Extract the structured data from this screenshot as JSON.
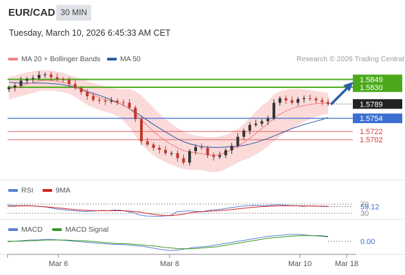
{
  "header": {
    "symbol": "EUR/CAD",
    "timeframe": "30 MIN",
    "timestamp": "Tuesday, March 10, 2026 6:45:33 AM CET"
  },
  "legend": {
    "ma20_bb": {
      "label": "MA 20 + Bollinger Bands",
      "color": "#f08080"
    },
    "ma50": {
      "label": "MA 50",
      "color": "#2c5aa0"
    },
    "rsi": {
      "label": "RSI",
      "color": "#5b7fd6"
    },
    "rsi_ma": {
      "label": "9MA",
      "color": "#d42020"
    },
    "macd": {
      "label": "MACD",
      "color": "#5b7fd6"
    },
    "macd_signal": {
      "label": "MACD Signal",
      "color": "#3a9a20"
    }
  },
  "credit": "Research © 2026 Trading Central",
  "colors": {
    "up_candle": "#333333",
    "down_candle": "#c0392b",
    "band_fill": "#fbdada",
    "resistance": "#4caa1a",
    "support_blue": "#3d6fd0",
    "support_red": "#e06060",
    "current": "#222222",
    "arrow": "#2a5fa8"
  },
  "chart_data": {
    "type": "candlestick",
    "x_ticks": [
      "Mar 6",
      "Mar 8",
      "Mar 10",
      "Mar 18"
    ],
    "current_price": "1.5789",
    "levels": [
      {
        "value": "1.5849",
        "kind": "resistance"
      },
      {
        "value": "1.5830",
        "kind": "resistance"
      },
      {
        "value": "1.5754",
        "kind": "pivot"
      },
      {
        "value": "1.5722",
        "kind": "support"
      },
      {
        "value": "1.5702",
        "kind": "support"
      }
    ],
    "close": [
      1.5829,
      1.5834,
      1.5846,
      1.585,
      1.5852,
      1.586,
      1.5861,
      1.5854,
      1.585,
      1.5848,
      1.5838,
      1.5828,
      1.5818,
      1.5808,
      1.5799,
      1.5797,
      1.5795,
      1.5797,
      1.5793,
      1.5792,
      1.578,
      1.5752,
      1.5698,
      1.569,
      1.5682,
      1.5677,
      1.5669,
      1.5669,
      1.5657,
      1.5646,
      1.5674,
      1.5684,
      1.5682,
      1.5664,
      1.566,
      1.5664,
      1.5676,
      1.5687,
      1.5709,
      1.5724,
      1.5738,
      1.5741,
      1.5747,
      1.5754,
      1.5792,
      1.5803,
      1.5798,
      1.5792,
      1.5801,
      1.5803,
      1.5802,
      1.5798,
      1.5794,
      1.5789
    ],
    "ma20": [
      1.5826,
      1.5829,
      1.5833,
      1.5838,
      1.5841,
      1.5845,
      1.5847,
      1.5846,
      1.5844,
      1.5842,
      1.5838,
      1.5831,
      1.5824,
      1.5817,
      1.5811,
      1.5805,
      1.58,
      1.5796,
      1.5792,
      1.5786,
      1.5778,
      1.5765,
      1.575,
      1.5736,
      1.5722,
      1.571,
      1.5699,
      1.569,
      1.5682,
      1.5675,
      1.5672,
      1.567,
      1.5668,
      1.5665,
      1.5664,
      1.5666,
      1.5671,
      1.5678,
      1.5686,
      1.5695,
      1.5706,
      1.5717,
      1.5729,
      1.5741,
      1.5754,
      1.5764,
      1.5772,
      1.5778,
      1.5782,
      1.5785,
      1.5788,
      1.579,
      1.5791,
      1.5791
    ],
    "ma50": [
      1.5842,
      1.5841,
      1.584,
      1.584,
      1.584,
      1.584,
      1.584,
      1.5839,
      1.5838,
      1.5836,
      1.5833,
      1.5829,
      1.5825,
      1.582,
      1.5815,
      1.581,
      1.5805,
      1.5799,
      1.5793,
      1.5786,
      1.5778,
      1.5769,
      1.5759,
      1.5749,
      1.5739,
      1.573,
      1.5721,
      1.5712,
      1.5704,
      1.5697,
      1.5692,
      1.5688,
      1.5685,
      1.5684,
      1.5683,
      1.5683,
      1.5684,
      1.5685,
      1.5686,
      1.5688,
      1.5691,
      1.5695,
      1.57,
      1.5705,
      1.5711,
      1.5717,
      1.5723,
      1.5729,
      1.5734,
      1.5739,
      1.5743,
      1.5747,
      1.5751,
      1.5756
    ],
    "bb_upper": [
      1.5856,
      1.5858,
      1.5863,
      1.5866,
      1.5869,
      1.5871,
      1.5872,
      1.587,
      1.5868,
      1.5865,
      1.586,
      1.5855,
      1.585,
      1.5845,
      1.584,
      1.5836,
      1.5832,
      1.5828,
      1.5826,
      1.5825,
      1.5825,
      1.582,
      1.581,
      1.5795,
      1.578,
      1.5765,
      1.5752,
      1.574,
      1.573,
      1.5722,
      1.5716,
      1.5712,
      1.571,
      1.5708,
      1.5708,
      1.571,
      1.5714,
      1.572,
      1.5728,
      1.574,
      1.5755,
      1.577,
      1.5785,
      1.5795,
      1.5812,
      1.582,
      1.5824,
      1.5826,
      1.5826,
      1.5825,
      1.5823,
      1.582,
      1.5818,
      1.5816
    ],
    "bb_lower": [
      1.58,
      1.5804,
      1.5808,
      1.5812,
      1.5816,
      1.582,
      1.5822,
      1.5822,
      1.582,
      1.5818,
      1.5814,
      1.5806,
      1.5796,
      1.5787,
      1.578,
      1.5775,
      1.577,
      1.5766,
      1.576,
      1.5748,
      1.5732,
      1.5712,
      1.569,
      1.5676,
      1.5664,
      1.5655,
      1.5647,
      1.5641,
      1.5635,
      1.563,
      1.5628,
      1.5628,
      1.5628,
      1.5624,
      1.5622,
      1.5624,
      1.563,
      1.5638,
      1.5646,
      1.5652,
      1.5658,
      1.5666,
      1.5674,
      1.5686,
      1.5698,
      1.571,
      1.572,
      1.573,
      1.5738,
      1.5745,
      1.5752,
      1.5758,
      1.5762,
      1.5765
    ],
    "rsi": {
      "current": "59.12",
      "levels": [
        "70",
        "30"
      ],
      "values": [
        66,
        64,
        63,
        64,
        62,
        60,
        58,
        52,
        48,
        45,
        42,
        40,
        38,
        39,
        40,
        42,
        41,
        44,
        43,
        38,
        32,
        22,
        18,
        17,
        16,
        18,
        21,
        37,
        39,
        40,
        38,
        37,
        42,
        45,
        48,
        52,
        56,
        60,
        63,
        65,
        64,
        63,
        66,
        68,
        66,
        64,
        63,
        60,
        62,
        61,
        60,
        59
      ],
      "ma9": [
        60,
        61,
        62,
        63,
        62,
        60,
        58,
        56,
        53,
        51,
        48,
        45,
        43,
        42,
        41,
        41,
        41,
        41,
        41,
        40,
        38,
        35,
        30,
        26,
        22,
        20,
        19,
        22,
        26,
        31,
        35,
        37,
        39,
        40,
        42,
        44,
        47,
        50,
        53,
        56,
        58,
        60,
        61,
        62,
        63,
        63,
        63,
        62,
        62,
        61,
        61,
        60
      ]
    },
    "macd": {
      "current": "0.00",
      "values": [
        -2,
        -1,
        0,
        1,
        1,
        2,
        2,
        1,
        0,
        -1,
        -2,
        -3,
        -4,
        -5,
        -6,
        -6,
        -7,
        -8,
        -9,
        -11,
        -13,
        -15,
        -16,
        -15,
        -13,
        -11,
        -10,
        -9,
        -7,
        -5,
        -3,
        -1,
        1,
        3,
        5,
        7,
        8,
        9,
        10,
        10,
        9,
        8,
        7,
        6
      ],
      "signal": [
        -1,
        -1,
        -1,
        0,
        0,
        1,
        1,
        1,
        1,
        0,
        0,
        -1,
        -2,
        -3,
        -4,
        -5,
        -5,
        -6,
        -7,
        -8,
        -9,
        -11,
        -12,
        -13,
        -13,
        -13,
        -12,
        -11,
        -10,
        -8,
        -6,
        -4,
        -2,
        0,
        2,
        4,
        5,
        6,
        7,
        8,
        8,
        8,
        8,
        7
      ]
    }
  }
}
